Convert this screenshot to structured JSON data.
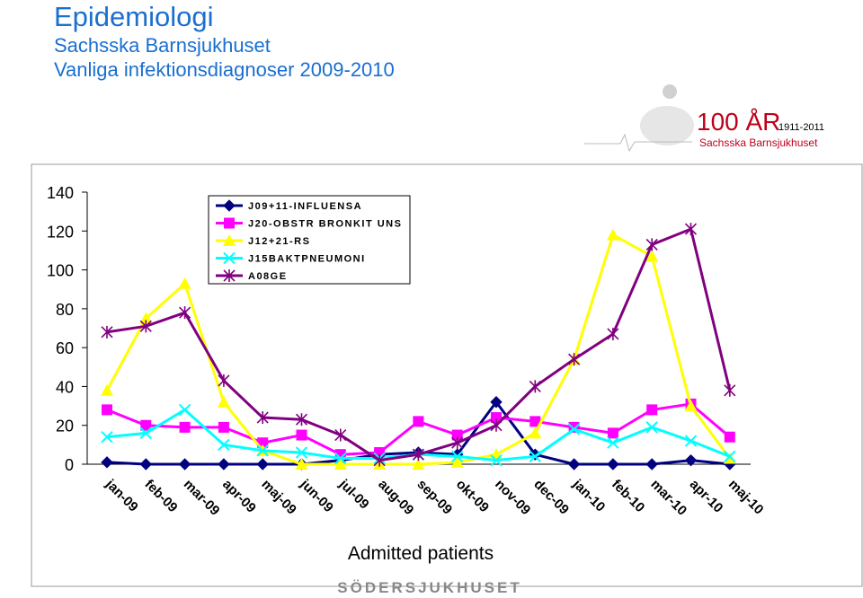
{
  "slide": {
    "title": "Epidemiologi",
    "subtitle": "Sachsska Barnsjukhuset",
    "heading": "Vanliga infektionsdiagnoser 2009-2010"
  },
  "logo": {
    "main": "100 ÅR",
    "years": "1911-2011",
    "name": "Sachsska Barnsjukhuset"
  },
  "footer": "SÖDERSJUKHUSET",
  "chart_data": {
    "type": "line",
    "x_label": "Admitted patients",
    "categories": [
      "jan-09",
      "feb-09",
      "mar-09",
      "apr-09",
      "maj-09",
      "jun-09",
      "jul-09",
      "aug-09",
      "sep-09",
      "okt-09",
      "nov-09",
      "dec-09",
      "jan-10",
      "feb-10",
      "mar-10",
      "apr-10",
      "maj-10"
    ],
    "ylim": [
      0,
      140
    ],
    "yticks": [
      0,
      20,
      40,
      60,
      80,
      100,
      120,
      140
    ],
    "grid": false,
    "series": [
      {
        "name": "J09+11-INFLUENSA",
        "color": "#000080",
        "marker": "diamond",
        "values": [
          1,
          0,
          0,
          0,
          0,
          0,
          2,
          5,
          6,
          5,
          32,
          5,
          0,
          0,
          0,
          2,
          0
        ]
      },
      {
        "name": "J20-OBSTR BRONKIT UNS",
        "color": "#ff00ff",
        "marker": "square",
        "values": [
          28,
          20,
          19,
          19,
          11,
          15,
          5,
          6,
          22,
          15,
          24,
          22,
          19,
          16,
          28,
          31,
          14
        ]
      },
      {
        "name": "J12+21-RS",
        "color": "#ffff00",
        "marker": "triangle",
        "values": [
          38,
          75,
          93,
          32,
          7,
          0,
          0,
          0,
          0,
          1,
          5,
          16,
          54,
          118,
          107,
          30,
          3
        ]
      },
      {
        "name": "J15BAKTPNEUMONI",
        "color": "#00ffff",
        "marker": "x",
        "values": [
          14,
          16,
          28,
          10,
          7,
          6,
          3,
          3,
          5,
          4,
          2,
          4,
          18,
          11,
          19,
          12,
          4
        ]
      },
      {
        "name": "A08GE",
        "color": "#800080",
        "marker": "asterisk",
        "values": [
          68,
          71,
          78,
          43,
          24,
          23,
          15,
          2,
          5,
          11,
          20,
          40,
          54,
          67,
          113,
          121,
          38
        ]
      }
    ]
  }
}
